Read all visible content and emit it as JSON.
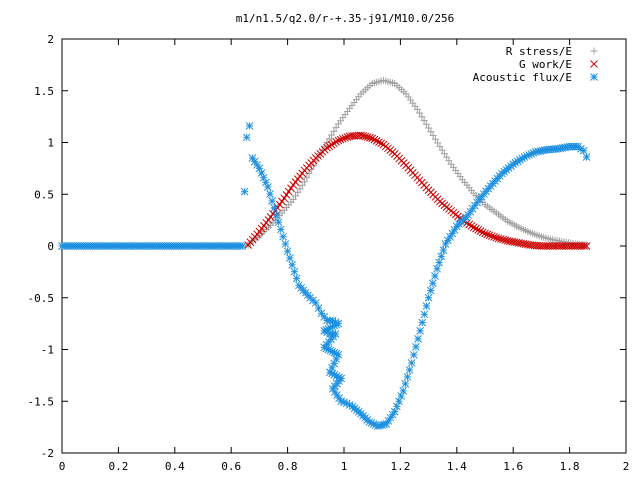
{
  "chart_data": {
    "type": "scatter",
    "title": "m1/n1.5/q2.0/r-+.35-j91/M10.0/256",
    "xlabel": "",
    "ylabel": "",
    "xlim": [
      0,
      2
    ],
    "ylim": [
      -2,
      2
    ],
    "x_ticks": [
      0,
      0.2,
      0.4,
      0.6,
      0.8,
      1,
      1.2,
      1.4,
      1.6,
      1.8,
      2
    ],
    "x_tick_labels": [
      "0",
      "0.2",
      "0.4",
      "0.6",
      "0.8",
      "1",
      "1.2",
      "1.4",
      "1.6",
      "1.8",
      "2"
    ],
    "y_ticks": [
      -2,
      -1.5,
      -1,
      -0.5,
      0,
      0.5,
      1,
      1.5,
      2
    ],
    "y_tick_labels": [
      "-2",
      "-1.5",
      "-1",
      "-0.5",
      "0",
      "0.5",
      "1",
      "1.5",
      "2"
    ],
    "grid": false,
    "legend_position": "top-right",
    "series": [
      {
        "name": "R stress/E",
        "marker": "plus",
        "color": "#a0a0a0",
        "points": [
          [
            0.66,
            0.01
          ],
          [
            0.7,
            0.1
          ],
          [
            0.74,
            0.2
          ],
          [
            0.78,
            0.32
          ],
          [
            0.82,
            0.45
          ],
          [
            0.86,
            0.62
          ],
          [
            0.9,
            0.82
          ],
          [
            0.94,
            1.0
          ],
          [
            0.98,
            1.18
          ],
          [
            1.02,
            1.33
          ],
          [
            1.06,
            1.47
          ],
          [
            1.1,
            1.57
          ],
          [
            1.14,
            1.6
          ],
          [
            1.18,
            1.57
          ],
          [
            1.22,
            1.47
          ],
          [
            1.26,
            1.32
          ],
          [
            1.3,
            1.14
          ],
          [
            1.34,
            0.96
          ],
          [
            1.38,
            0.79
          ],
          [
            1.42,
            0.64
          ],
          [
            1.46,
            0.51
          ],
          [
            1.5,
            0.4
          ],
          [
            1.54,
            0.32
          ],
          [
            1.58,
            0.24
          ],
          [
            1.62,
            0.18
          ],
          [
            1.66,
            0.13
          ],
          [
            1.7,
            0.09
          ],
          [
            1.74,
            0.06
          ],
          [
            1.78,
            0.04
          ],
          [
            1.82,
            0.02
          ],
          [
            1.86,
            0.01
          ]
        ]
      },
      {
        "name": "G work/E",
        "marker": "cross",
        "color": "#cc0000",
        "points": [
          [
            0.66,
            0.01
          ],
          [
            0.7,
            0.14
          ],
          [
            0.74,
            0.28
          ],
          [
            0.78,
            0.43
          ],
          [
            0.82,
            0.59
          ],
          [
            0.86,
            0.73
          ],
          [
            0.9,
            0.85
          ],
          [
            0.94,
            0.95
          ],
          [
            0.98,
            1.02
          ],
          [
            1.02,
            1.06
          ],
          [
            1.06,
            1.07
          ],
          [
            1.1,
            1.04
          ],
          [
            1.14,
            0.98
          ],
          [
            1.18,
            0.89
          ],
          [
            1.22,
            0.78
          ],
          [
            1.26,
            0.66
          ],
          [
            1.3,
            0.54
          ],
          [
            1.34,
            0.43
          ],
          [
            1.38,
            0.34
          ],
          [
            1.42,
            0.25
          ],
          [
            1.46,
            0.18
          ],
          [
            1.5,
            0.12
          ],
          [
            1.54,
            0.08
          ],
          [
            1.58,
            0.05
          ],
          [
            1.62,
            0.03
          ],
          [
            1.66,
            0.01
          ],
          [
            1.7,
            0.0
          ],
          [
            1.74,
            0.0
          ],
          [
            1.78,
            0.0
          ],
          [
            1.82,
            0.0
          ],
          [
            1.86,
            0.0
          ]
        ]
      },
      {
        "name": "Acoustic flux/E",
        "marker": "star",
        "color": "#1e90e0",
        "points": [
          [
            0.0,
            0.0
          ],
          [
            0.04,
            0.0
          ],
          [
            0.08,
            0.0
          ],
          [
            0.12,
            0.0
          ],
          [
            0.16,
            0.0
          ],
          [
            0.2,
            0.0
          ],
          [
            0.24,
            0.0
          ],
          [
            0.28,
            0.0
          ],
          [
            0.32,
            0.0
          ],
          [
            0.36,
            0.0
          ],
          [
            0.4,
            0.0
          ],
          [
            0.44,
            0.0
          ],
          [
            0.48,
            0.0
          ],
          [
            0.52,
            0.0
          ],
          [
            0.56,
            0.0
          ],
          [
            0.6,
            0.0
          ],
          [
            0.64,
            0.0
          ],
          [
            0.655,
            1.05
          ],
          [
            0.665,
            1.16
          ],
          [
            0.675,
            0.85
          ],
          [
            0.7,
            0.75
          ],
          [
            0.73,
            0.57
          ],
          [
            0.76,
            0.3
          ],
          [
            0.8,
            -0.05
          ],
          [
            0.84,
            -0.38
          ],
          [
            0.88,
            -0.5
          ],
          [
            0.9,
            -0.55
          ],
          [
            0.92,
            -0.65
          ],
          [
            0.94,
            -0.72
          ],
          [
            0.96,
            -0.72
          ],
          [
            0.98,
            -0.75
          ],
          [
            0.93,
            -0.82
          ],
          [
            0.95,
            -0.85
          ],
          [
            0.97,
            -0.85
          ],
          [
            0.93,
            -0.98
          ],
          [
            0.98,
            -1.05
          ],
          [
            0.95,
            -1.22
          ],
          [
            0.99,
            -1.28
          ],
          [
            0.96,
            -1.38
          ],
          [
            0.99,
            -1.5
          ],
          [
            1.01,
            -1.52
          ],
          [
            1.03,
            -1.55
          ],
          [
            1.06,
            -1.62
          ],
          [
            1.09,
            -1.7
          ],
          [
            1.12,
            -1.74
          ],
          [
            1.15,
            -1.72
          ],
          [
            1.18,
            -1.6
          ],
          [
            1.21,
            -1.4
          ],
          [
            1.24,
            -1.13
          ],
          [
            1.27,
            -0.82
          ],
          [
            1.3,
            -0.5
          ],
          [
            1.33,
            -0.22
          ],
          [
            1.36,
            0.02
          ],
          [
            1.4,
            0.19
          ],
          [
            1.44,
            0.3
          ],
          [
            1.48,
            0.45
          ],
          [
            1.52,
            0.58
          ],
          [
            1.56,
            0.7
          ],
          [
            1.6,
            0.79
          ],
          [
            1.64,
            0.86
          ],
          [
            1.68,
            0.91
          ],
          [
            1.72,
            0.93
          ],
          [
            1.76,
            0.94
          ],
          [
            1.8,
            0.96
          ],
          [
            1.83,
            0.96
          ],
          [
            1.85,
            0.92
          ],
          [
            1.86,
            0.86
          ]
        ]
      }
    ]
  }
}
